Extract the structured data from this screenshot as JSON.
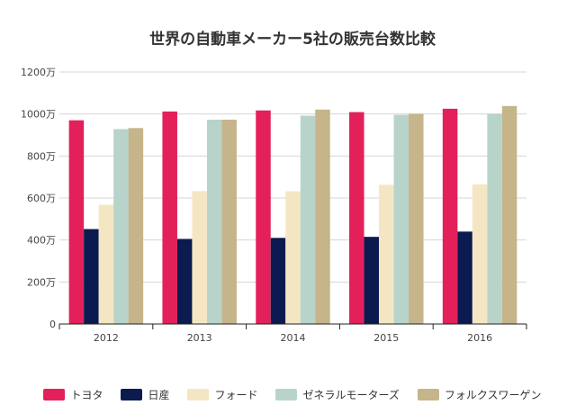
{
  "chart_data": {
    "type": "bar",
    "title": "世界の自動車メーカー5社の販売台数比較",
    "xlabel": "",
    "ylabel": "",
    "categories": [
      "2012",
      "2013",
      "2014",
      "2015",
      "2016"
    ],
    "ylim": [
      0,
      1200
    ],
    "y_ticks": [
      "0",
      "200万",
      "400万",
      "600万",
      "800万",
      "1000万",
      "1200万"
    ],
    "grid": true,
    "legend_position": "bottom",
    "series": [
      {
        "name": "トヨタ",
        "color": "#e3205a",
        "values": [
          970,
          1012,
          1017,
          1009,
          1025
        ]
      },
      {
        "name": "日産",
        "color": "#0b1a4f",
        "values": [
          452,
          405,
          410,
          415,
          440
        ]
      },
      {
        "name": "フォード",
        "color": "#f5e6c3",
        "values": [
          568,
          633,
          632,
          663,
          665
        ]
      },
      {
        "name": "ゼネラルモーターズ",
        "color": "#b8d4ca",
        "values": [
          928,
          973,
          992,
          996,
          1001
        ]
      },
      {
        "name": "フォルクスワーゲン",
        "color": "#c6b48a",
        "values": [
          933,
          973,
          1021,
          1001,
          1038
        ]
      }
    ]
  }
}
